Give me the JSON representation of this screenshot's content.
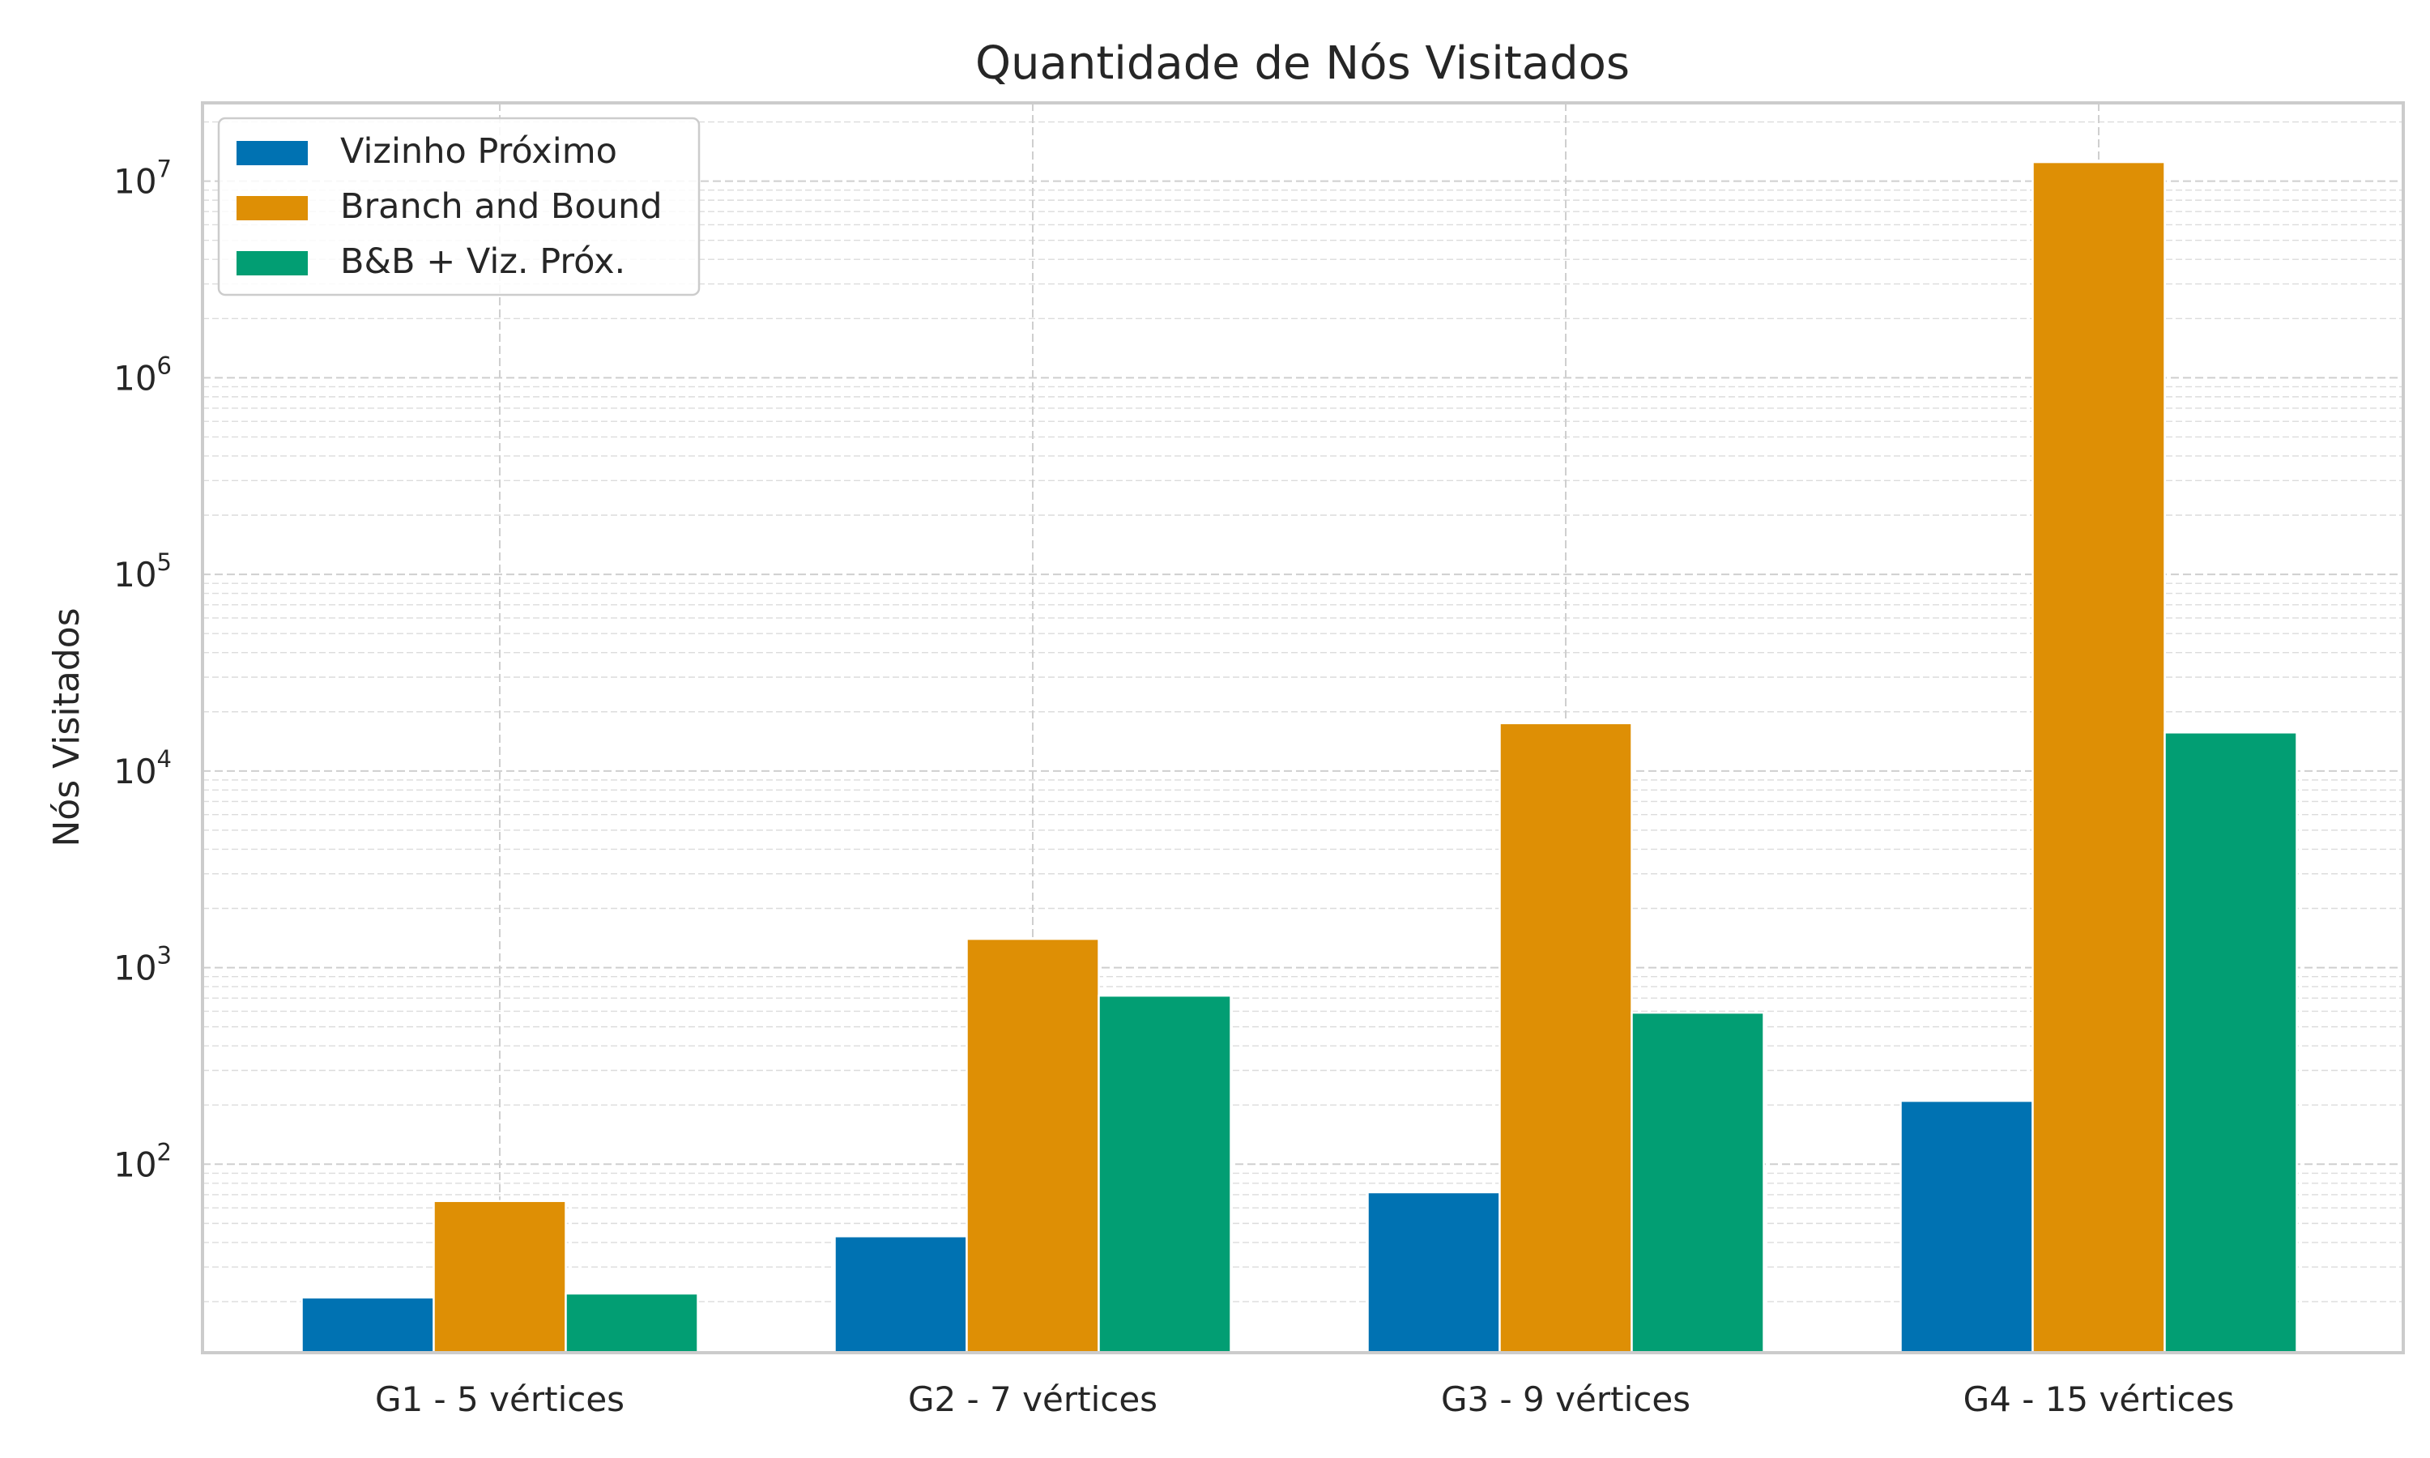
{
  "chart_data": {
    "type": "bar",
    "title": "Quantidade de Nós Visitados",
    "xlabel": "",
    "ylabel": "Nós Visitados",
    "yscale": "log",
    "ylim": [
      11,
      25000000
    ],
    "y_ticks": [
      100,
      1000,
      10000,
      100000,
      1000000,
      10000000
    ],
    "y_tick_labels": [
      {
        "base": "10",
        "exp": "2"
      },
      {
        "base": "10",
        "exp": "3"
      },
      {
        "base": "10",
        "exp": "4"
      },
      {
        "base": "10",
        "exp": "5"
      },
      {
        "base": "10",
        "exp": "6"
      },
      {
        "base": "10",
        "exp": "7"
      }
    ],
    "grid": true,
    "legend_position": "top-left",
    "categories": [
      "G1 - 5 vértices",
      "G2 - 7 vértices",
      "G3 - 9 vértices",
      "G4 - 15 vértices"
    ],
    "series": [
      {
        "name": "Vizinho Próximo",
        "color": "#0072b2",
        "values": [
          21,
          43,
          72,
          210
        ]
      },
      {
        "name": "Branch and Bound",
        "color": "#de8f05",
        "values": [
          65,
          1400,
          17500,
          12500000
        ]
      },
      {
        "name": "B&B + Viz. Próx.",
        "color": "#029e73",
        "values": [
          22,
          720,
          590,
          15700
        ]
      }
    ]
  }
}
